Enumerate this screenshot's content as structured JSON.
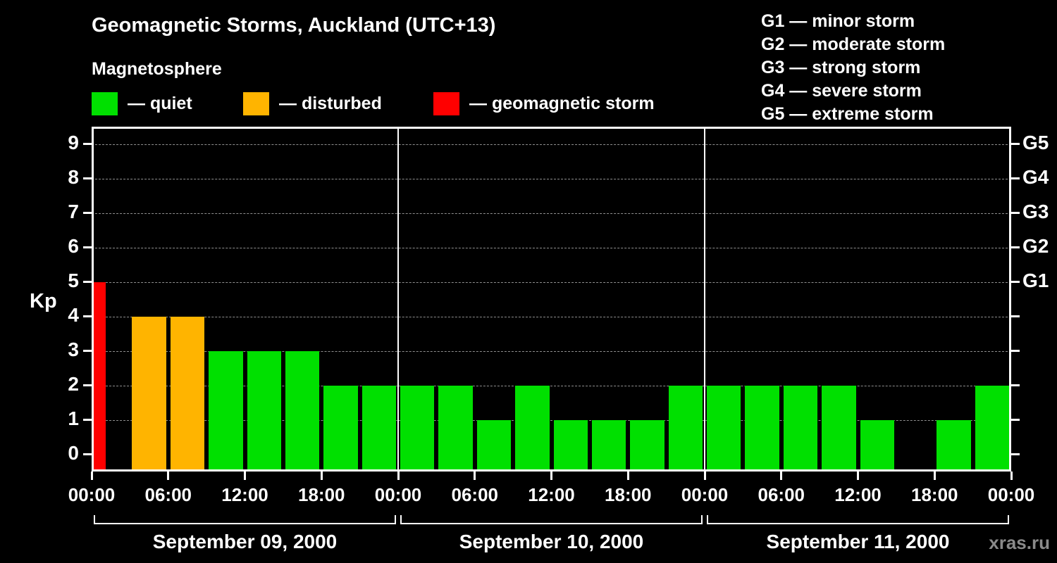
{
  "title": "Geomagnetic Storms, Auckland (UTC+13)",
  "subtitle": "Magnetosphere",
  "legend": {
    "quiet": "— quiet",
    "disturbed": "— disturbed",
    "storm": "— geomagnetic storm"
  },
  "g_legend": [
    "G1 — minor storm",
    "G2 — moderate storm",
    "G3 — strong storm",
    "G4 — severe storm",
    "G5 — extreme storm"
  ],
  "axis": {
    "kp_label": "Kp"
  },
  "watermark": "xras.ru",
  "colors": {
    "quiet": "#00e000",
    "disturbed": "#ffb400",
    "storm": "#ff0000",
    "gridline": "#8f8f8f",
    "axis": "#ffffff",
    "watermark": "#8a8a8a"
  },
  "chart_data": {
    "type": "bar",
    "title": "Geomagnetic Storms, Auckland (UTC+13)",
    "ylabel": "Kp",
    "ylim": [
      0,
      9.5
    ],
    "interval_hours": 3,
    "grid": "dashed horizontal",
    "legend_position": "top",
    "y_ticks": [
      0,
      1,
      2,
      3,
      4,
      5,
      6,
      7,
      8,
      9
    ],
    "x_tick_labels": [
      "00:00",
      "06:00",
      "12:00",
      "18:00",
      "00:00",
      "06:00",
      "12:00",
      "18:00",
      "00:00",
      "06:00",
      "12:00",
      "18:00",
      "00:00"
    ],
    "right_axis_labels": [
      {
        "label": "G1",
        "kp": 5
      },
      {
        "label": "G2",
        "kp": 6
      },
      {
        "label": "G3",
        "kp": 7
      },
      {
        "label": "G4",
        "kp": 8
      },
      {
        "label": "G5",
        "kp": 9
      }
    ],
    "days": [
      {
        "date": "September 09, 2000",
        "kp": [
          5,
          4,
          4,
          3,
          3,
          3,
          2,
          2
        ]
      },
      {
        "date": "September 10, 2000",
        "kp": [
          2,
          2,
          1,
          2,
          1,
          1,
          1,
          2
        ]
      },
      {
        "date": "September 11, 2000",
        "kp": [
          2,
          2,
          2,
          2,
          1,
          0,
          1,
          2
        ]
      }
    ],
    "status_by_kp": {
      "quiet": "kp <= 3",
      "disturbed": "kp = 4",
      "storm": "kp >= 5"
    },
    "first_bar_narrow": true
  }
}
